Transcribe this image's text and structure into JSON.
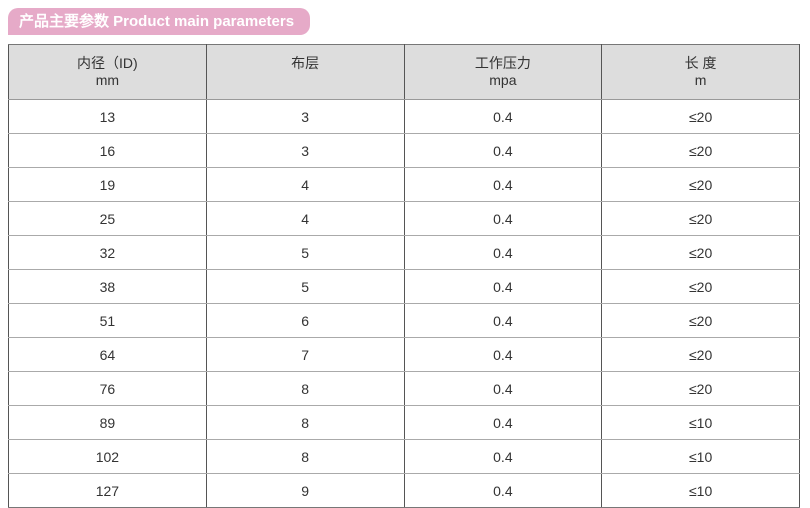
{
  "banner": {
    "title": "产品主要参数 Product main parameters",
    "color": "#e6aac8"
  },
  "table": {
    "headers": [
      {
        "line1": "内径（ID)",
        "line2": "mm"
      },
      {
        "line1": "布层",
        "line2": ""
      },
      {
        "line1": "工作压力",
        "line2": "mpa"
      },
      {
        "line1": "长 度",
        "line2": "m"
      }
    ],
    "rows": [
      [
        "13",
        "3",
        "0.4",
        "≤20"
      ],
      [
        "16",
        "3",
        "0.4",
        "≤20"
      ],
      [
        "19",
        "4",
        "0.4",
        "≤20"
      ],
      [
        "25",
        "4",
        "0.4",
        "≤20"
      ],
      [
        "32",
        "5",
        "0.4",
        "≤20"
      ],
      [
        "38",
        "5",
        "0.4",
        "≤20"
      ],
      [
        "51",
        "6",
        "0.4",
        "≤20"
      ],
      [
        "64",
        "7",
        "0.4",
        "≤20"
      ],
      [
        "76",
        "8",
        "0.4",
        "≤20"
      ],
      [
        "89",
        "8",
        "0.4",
        "≤10"
      ],
      [
        "102",
        "8",
        "0.4",
        "≤10"
      ],
      [
        "127",
        "9",
        "0.4",
        "≤10"
      ]
    ]
  }
}
